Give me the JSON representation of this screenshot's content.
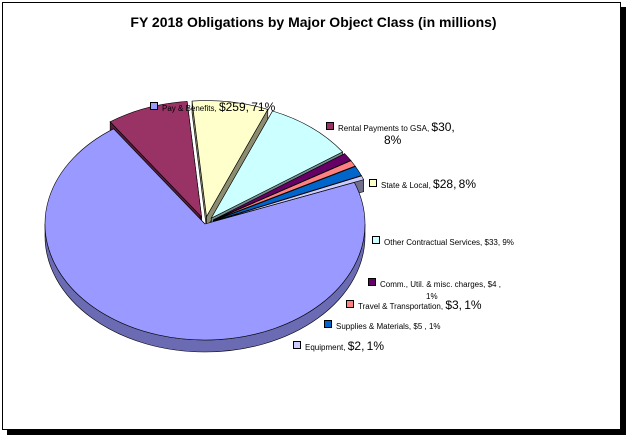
{
  "chart_data": {
    "type": "pie",
    "title": "FY 2018 Obligations by Major Object Class (in millions)",
    "slices": [
      {
        "name": "Pay & Benefits",
        "value": 259,
        "value_label": "$259",
        "percent_label": "71%",
        "color": "#9999ff"
      },
      {
        "name": "Rental Payments to GSA",
        "value": 30,
        "value_label": "$30",
        "percent_label": "8%",
        "color": "#993366"
      },
      {
        "name": "State & Local",
        "value": 28,
        "value_label": "$28",
        "percent_label": "8%",
        "color": "#ffffcc"
      },
      {
        "name": "Other Contractual Services",
        "value": 33,
        "value_label": "$33",
        "percent_label": "9%",
        "color": "#ccffff"
      },
      {
        "name": "Comm., Util. & misc. charges",
        "value": 4,
        "value_label": "$4",
        "percent_label": "1%",
        "color": "#660066"
      },
      {
        "name": "Travel & Transportation",
        "value": 3,
        "value_label": "$3",
        "percent_label": "1%",
        "color": "#ff8080"
      },
      {
        "name": "Supplies & Materials",
        "value": 5,
        "value_label": "$5",
        "percent_label": "1%",
        "color": "#0066cc"
      },
      {
        "name": "Equipment",
        "value": 2,
        "value_label": "$2",
        "percent_label": "1%",
        "color": "#ccccff"
      }
    ]
  }
}
